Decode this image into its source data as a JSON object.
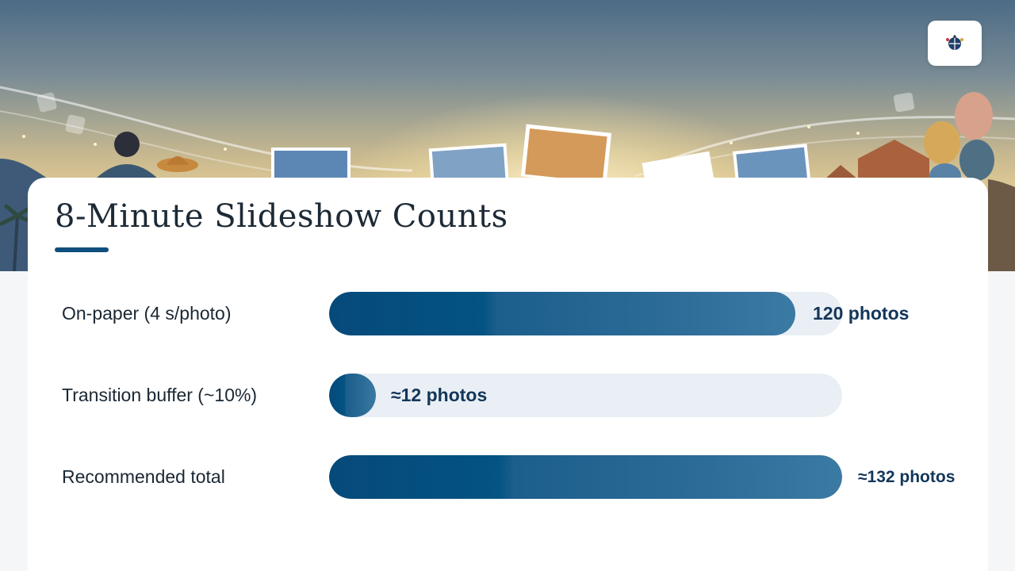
{
  "header": {
    "logo_icon": "globe-emblem-icon"
  },
  "title": "8-Minute Slideshow Counts",
  "chart_data": {
    "type": "bar",
    "orientation": "horizontal",
    "title": "8-Minute Slideshow Counts",
    "categories": [
      "On-paper (4 s/photo)",
      "Transition buffer (~10%)",
      "Recommended total"
    ],
    "values": [
      120,
      12,
      132
    ],
    "value_labels": [
      "120 photos",
      "≈12 photos",
      "≈132 photos"
    ],
    "xlim": [
      0,
      132
    ],
    "grid": false,
    "legend": "none"
  },
  "colors": {
    "bar": "#0b4f80",
    "track": "#e9eff4",
    "value_text": "#12365a",
    "accent": "#0f4e7e"
  }
}
